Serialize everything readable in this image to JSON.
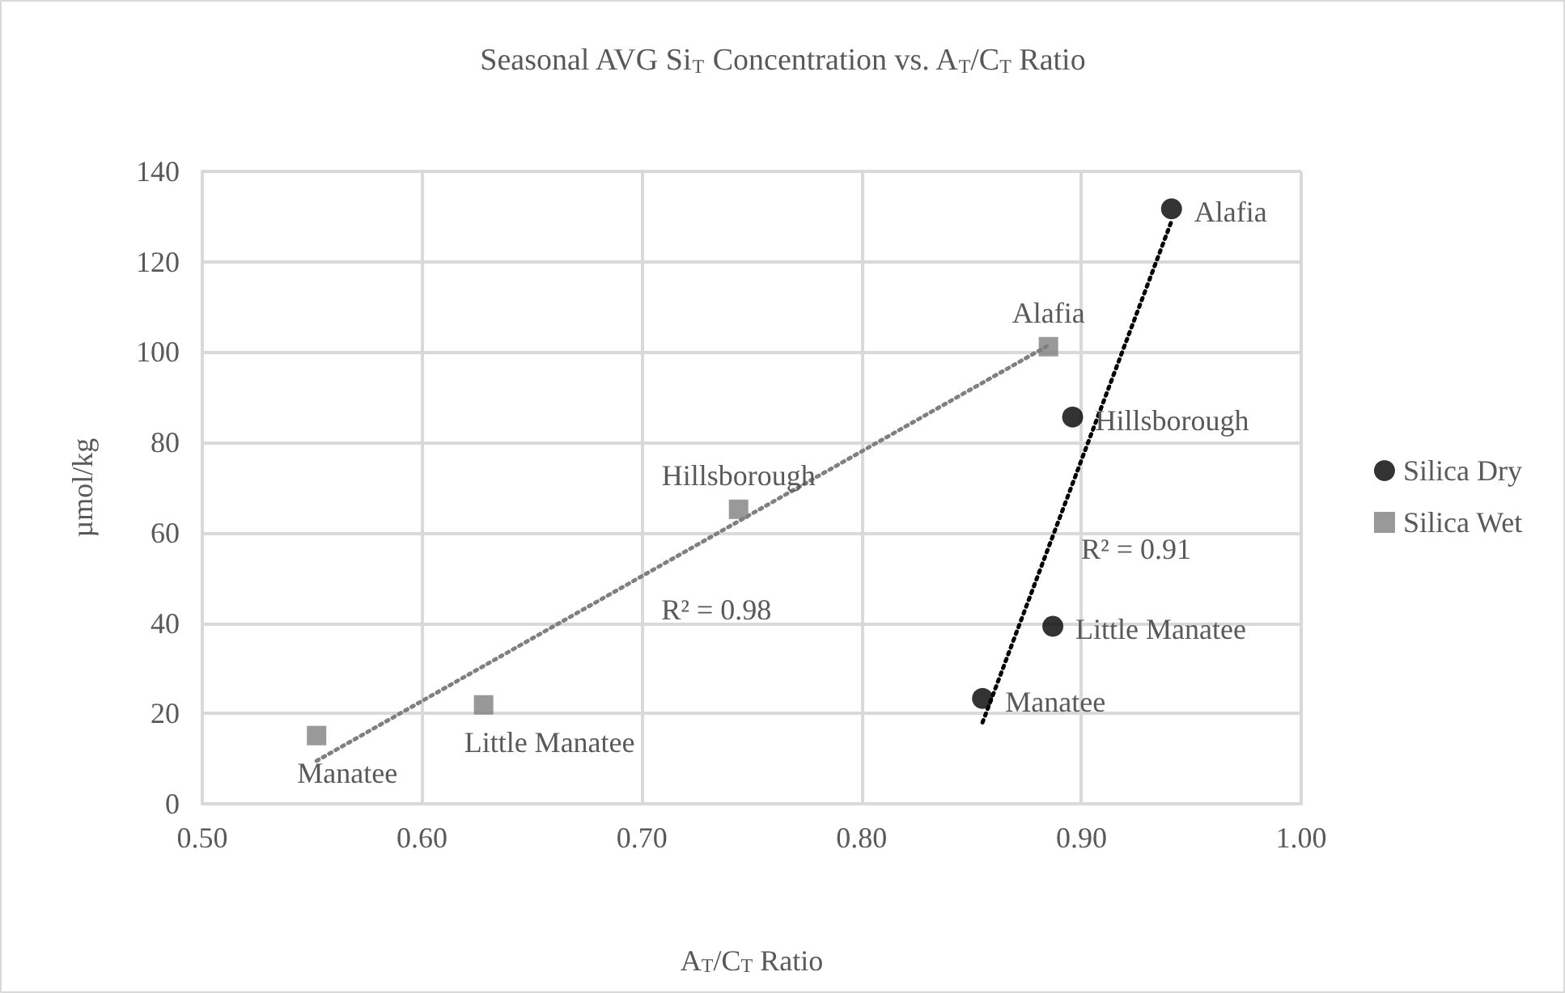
{
  "chart_data": {
    "type": "scatter",
    "title": "Seasonal AVG Si$_{T}$ Concentration vs. A$_{T}$/C$_{T}$ Ratio",
    "xlabel": "A$_{T}$/C$_{T}$ Ratio",
    "ylabel": "µmol/kg",
    "series": [
      {
        "name": "Silica Dry",
        "color": "#000000",
        "marker": "circle",
        "x": [
          0.941,
          0.896,
          0.887,
          0.855
        ],
        "values": [
          131.7,
          85.6,
          39.3,
          23.3
        ]
      },
      {
        "name": "Silica Wet",
        "color": "#808080",
        "marker": "square",
        "x": [
          0.885,
          0.744,
          0.628,
          0.552
        ],
        "values": [
          101.2,
          65.2,
          21.9,
          15.1
        ]
      },
      {
        "type": "line",
        "color": "#000000",
        "line_style": "dotted",
        "marker": "none",
        "x": [
          0.855,
          0.941
        ],
        "values": [
          18,
          129
        ]
      },
      {
        "type": "line",
        "color": "#808080",
        "line_style": "dotted",
        "marker": "none",
        "x": [
          0.552,
          0.885
        ],
        "values": [
          9.5,
          101.5
        ]
      }
    ],
    "annotations": [
      {
        "text": "Alafia",
        "x": 0.941,
        "y": 131.7
      },
      {
        "text": "Hillsborough",
        "x": 0.896,
        "y": 85.6
      },
      {
        "text": "Little Manatee",
        "x": 0.887,
        "y": 39.3
      },
      {
        "text": "Manatee",
        "x": 0.855,
        "y": 23.3
      },
      {
        "text": "Alafia",
        "x": 0.885,
        "y": 101.2
      },
      {
        "text": "Hillsborough",
        "x": 0.744,
        "y": 65.2
      },
      {
        "text": "Little Manatee",
        "x": 0.628,
        "y": 21.9
      },
      {
        "text": "Manatee",
        "x": 0.552,
        "y": 15.1
      },
      {
        "text": "R² = 0.98",
        "x": 0.7,
        "y": 50.4
      },
      {
        "text": "R² = 0.91",
        "x": 0.891,
        "y": 64
      }
    ],
    "xlim": [
      0.5,
      1.0
    ],
    "xticks": [
      {
        "value": 0.5,
        "label": "0.50"
      },
      {
        "value": 0.6,
        "label": "0.60"
      },
      {
        "value": 0.7,
        "label": "0.70"
      },
      {
        "value": 0.8,
        "label": "0.80"
      },
      {
        "value": 0.9,
        "label": "0.90"
      },
      {
        "value": 1.0,
        "label": "1.00"
      }
    ],
    "ylim": [
      0,
      140
    ],
    "yticks": [
      0,
      20,
      40,
      60,
      80,
      100,
      120,
      140
    ],
    "grid": true,
    "legend": "right"
  }
}
